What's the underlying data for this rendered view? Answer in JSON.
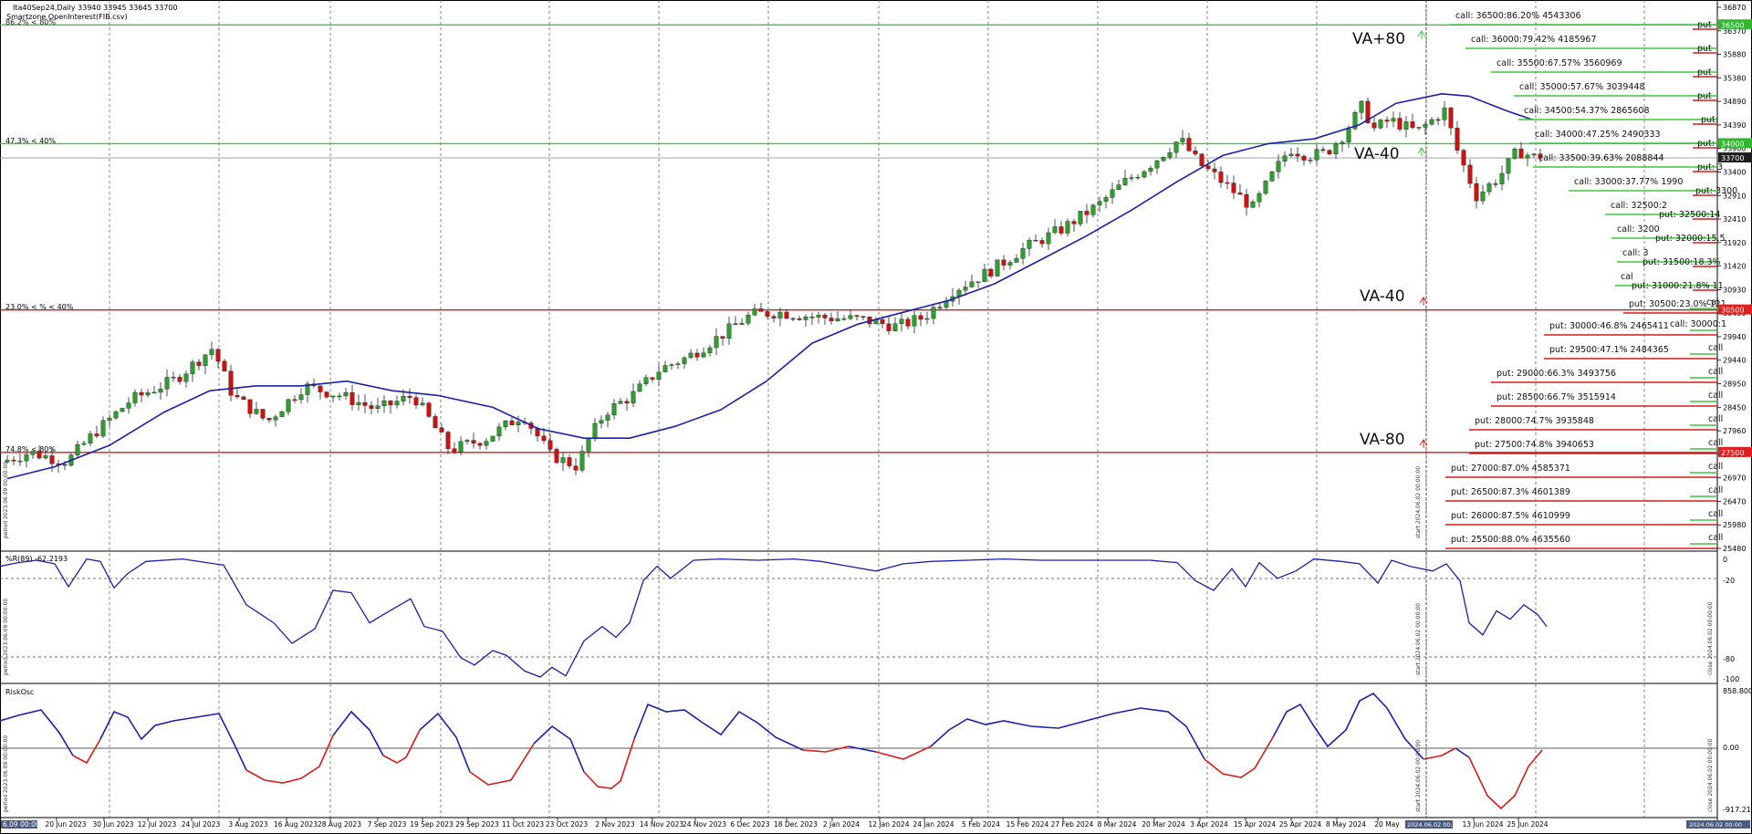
{
  "header": {
    "symbol_line": "Ita40Sep24,Daily  33940 33945 33645 33700",
    "indicator_line": "Smartzone OpenInterest(FIB.csv)"
  },
  "level_tags": {
    "top": "86.2% < 80%",
    "mid": "47.3% < 40%",
    "low": "23.0% < % < 40%",
    "bottom": "74.8% < 80%"
  },
  "va_labels": {
    "va_plus80": "VA+80",
    "va_minus40_a": "VA-40",
    "va_minus40_b": "VA-40",
    "va_minus80": "VA-80"
  },
  "price_axis": {
    "ticks": [
      "36870",
      "36370",
      "35880",
      "35380",
      "34890",
      "34390",
      "33900",
      "33400",
      "32910",
      "32410",
      "31920",
      "31420",
      "30930",
      "30430",
      "29940",
      "29440",
      "28950",
      "28450",
      "27960",
      "27460",
      "26970",
      "26470",
      "25980",
      "25480"
    ],
    "tags": [
      {
        "label": "36500",
        "color": "#2db82d"
      },
      {
        "label": "34000",
        "color": "#2db82d"
      },
      {
        "label": "33700",
        "color": "#1f1f1f"
      },
      {
        "label": "30500",
        "color": "#e02020"
      },
      {
        "label": "27500",
        "color": "#e02020"
      }
    ]
  },
  "calls": [
    {
      "text": "call: 36500:86.20% 4543306",
      "side": "put"
    },
    {
      "text": "call: 36000:79.42% 4185967",
      "side": "put"
    },
    {
      "text": "call: 35500:67.57% 3560969",
      "side": "put"
    },
    {
      "text": "call: 35000:57.67% 3039448",
      "side": "put"
    },
    {
      "text": "call: 34500:54.37% 2865608",
      "side": "put:"
    },
    {
      "text": "call: 34000:47.25% 2490333",
      "side": "put: 3"
    },
    {
      "text": "call: 33500:39.63% 2088844",
      "side": "put: 3"
    },
    {
      "text": "call: 33000:37.77% 1990",
      "side": "put: 3300"
    },
    {
      "text": "call: 32500:2",
      "side": "put: 32500:14"
    },
    {
      "text": "call: 3200",
      "side": "put: 32000:15.5"
    },
    {
      "text": "call: 3",
      "side": "put: 31500:18.3%"
    },
    {
      "text": "cal",
      "side": "put: 31000:21.8% 11"
    }
  ],
  "puts": [
    {
      "text": "put: 30500:23.0% 121",
      "side": "cal"
    },
    {
      "text": "put: 30000:46.8% 2465411",
      "side": "call: 30000:1"
    },
    {
      "text": "put: 29500:47.1% 2484365",
      "side": "call"
    },
    {
      "text": "put: 29000:66.3% 3493756",
      "side": "call"
    },
    {
      "text": "put: 28500:66.7% 3515914",
      "side": "call"
    },
    {
      "text": "put: 28000:74.7% 3935848",
      "side": "call"
    },
    {
      "text": "put: 27500:74.8% 3940653",
      "side": "call"
    },
    {
      "text": "put: 27000:87.0% 4585371",
      "side": "call"
    },
    {
      "text": "put: 26500:87.3% 4601389",
      "side": "call"
    },
    {
      "text": "put: 26000:87.5% 4610999",
      "side": "call"
    },
    {
      "text": "put: 25500:88.0% 4635560",
      "side": "call"
    }
  ],
  "williams": {
    "title": "%R(89) -62.2193",
    "ticks": [
      "0",
      "-20",
      "-80",
      "-100"
    ]
  },
  "riskosc": {
    "title": "RiskOsc",
    "ticks": [
      "858.800",
      "0.00",
      "-917.214"
    ]
  },
  "date_axis": [
    "20 Jun 2023",
    "30 Jun 2023",
    "12 Jul 2023",
    "24 Jul 2023",
    "3 Aug 2023",
    "16 Aug 2023",
    "28 Aug 2023",
    "7 Sep 2023",
    "19 Sep 2023",
    "29 Sep 2023",
    "11 Oct 2023",
    "23 Oct 2023",
    "2 Nov 2023",
    "14 Nov 2023",
    "24 Nov 2023",
    "6 Dec 2023",
    "18 Dec 2023",
    "2 Jan 2024",
    "12 Jan 2024",
    "24 Jan 2024",
    "5 Feb 2024",
    "15 Feb 2024",
    "27 Feb 2024",
    "8 Mar 2024",
    "20 Mar 2024",
    "3 Apr 2024",
    "15 Apr 2024",
    "25 Apr 2024",
    "8 May 2024",
    "20 May",
    "13 Jun 2024",
    "25 Jun 2024"
  ],
  "date_tags": {
    "left": "6.09 00:00",
    "mid": "2024.06.02 00:00",
    "right": "2024.06.02 00:00"
  },
  "vertical_notes": {
    "start1": "start 2024.06.02 00:00:00",
    "start2": "start 2024.06.02 00:00:00",
    "start3": "start 2024.06.02 00:00:00",
    "period1": "period 2023.06.09 00:00:00",
    "period2": "period 2023.06.09 00:00:00",
    "period3": "period 2023.06.09 00:00:00",
    "close1": "close 2024.06.02 00:00:00",
    "close2": "close 2024.06.02 00:00:00"
  },
  "colors": {
    "up": "#2e9e2e",
    "down": "#d01010",
    "ma": "#1a20a8",
    "green_line": "#3cc83c",
    "red_line": "#d81b1b"
  }
}
